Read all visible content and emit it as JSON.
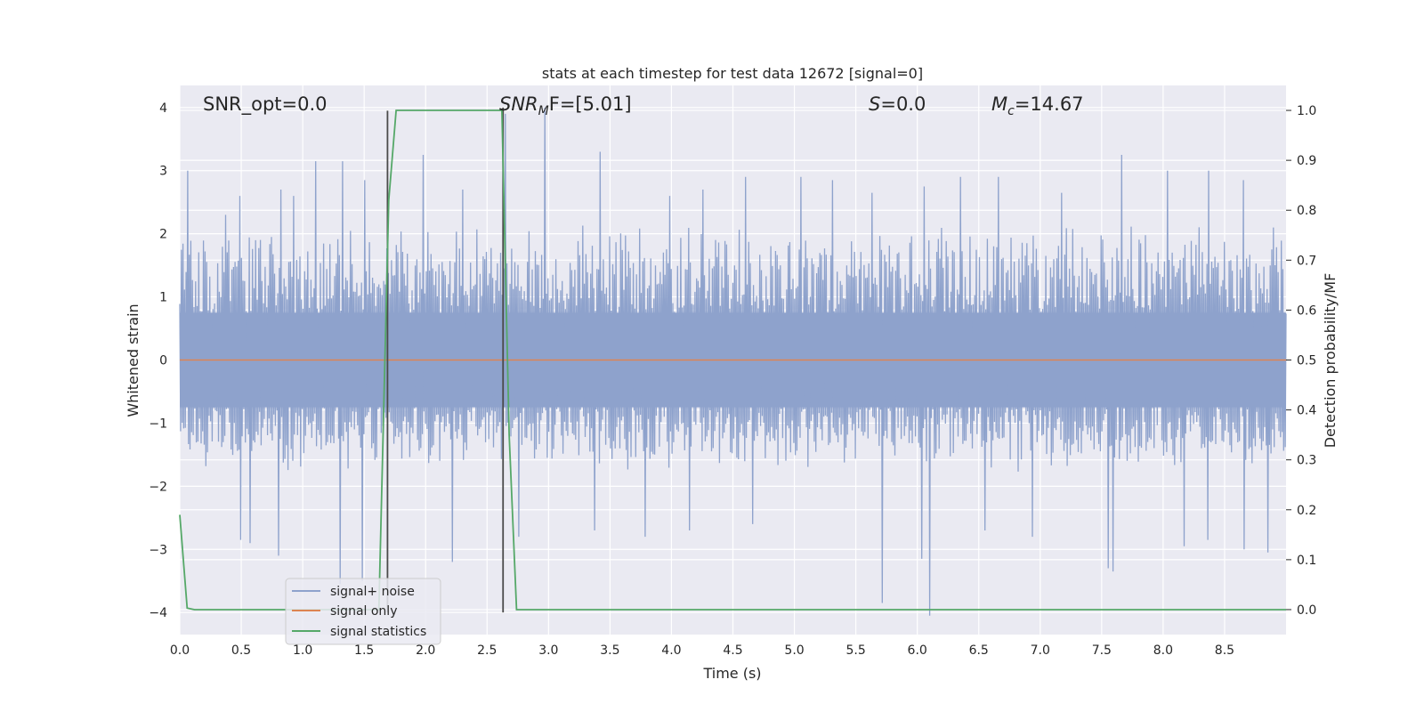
{
  "chart_data": {
    "type": "line",
    "title": "stats at each timestep for test data 12672 [signal=0]",
    "xlabel": "Time (s)",
    "ylabel": "Whitened strain",
    "y2label": "Detection probability/MF",
    "xlim": [
      0.0,
      9.0
    ],
    "ylim": [
      -4.35,
      4.35
    ],
    "y2lim": [
      -0.05,
      1.05
    ],
    "xticks": [
      "0.0",
      "0.5",
      "1.0",
      "1.5",
      "2.0",
      "2.5",
      "3.0",
      "3.5",
      "4.0",
      "4.5",
      "5.0",
      "5.5",
      "6.0",
      "6.5",
      "7.0",
      "7.5",
      "8.0",
      "8.5"
    ],
    "yticks": [
      "4",
      "3",
      "2",
      "1",
      "0",
      "−1",
      "−2",
      "−3",
      "−4"
    ],
    "y2ticks": [
      "1.0",
      "0.9",
      "0.8",
      "0.7",
      "0.6",
      "0.5",
      "0.4",
      "0.3",
      "0.2",
      "0.1",
      "0.0"
    ],
    "grid": true,
    "legend_placement": "lower-left",
    "annotations": {
      "snr_opt": "SNR_opt=0.0",
      "snr_mf": {
        "main": "SNR",
        "sub": "M",
        "rest": "F=[5.01]"
      },
      "s": {
        "main": "S",
        "rest": "=0.0"
      },
      "mc": {
        "main": "M",
        "sub": "c",
        "rest": "=14.67"
      }
    },
    "series": [
      {
        "name": "signal+ noise",
        "color": "#8ea2cc",
        "axis": "left",
        "kind": "noise",
        "envelope_typical_max": 2.2,
        "envelope_typical_min": -1.8,
        "peaks": [
          [
            0.07,
            3.0
          ],
          [
            0.37,
            2.3
          ],
          [
            0.49,
            2.6
          ],
          [
            0.82,
            2.7
          ],
          [
            0.92,
            2.6
          ],
          [
            1.1,
            3.15
          ],
          [
            1.32,
            3.15
          ],
          [
            1.5,
            2.85
          ],
          [
            1.98,
            3.25
          ],
          [
            2.3,
            2.7
          ],
          [
            2.65,
            3.9
          ],
          [
            2.97,
            4.0
          ],
          [
            3.42,
            3.3
          ],
          [
            3.98,
            2.6
          ],
          [
            4.25,
            2.7
          ],
          [
            4.6,
            2.9
          ],
          [
            5.05,
            2.9
          ],
          [
            5.31,
            2.85
          ],
          [
            5.63,
            2.65
          ],
          [
            6.06,
            2.75
          ],
          [
            6.35,
            2.9
          ],
          [
            6.66,
            2.9
          ],
          [
            7.18,
            2.65
          ],
          [
            7.66,
            3.25
          ],
          [
            8.03,
            3.0
          ],
          [
            8.37,
            3.0
          ],
          [
            8.65,
            2.85
          ],
          [
            8.9,
            2.1
          ]
        ],
        "troughs": [
          [
            0.5,
            -2.85
          ],
          [
            0.57,
            -2.9
          ],
          [
            0.8,
            -3.1
          ],
          [
            1.3,
            -3.55
          ],
          [
            1.48,
            -3.5
          ],
          [
            2.22,
            -3.2
          ],
          [
            2.76,
            -2.8
          ],
          [
            3.37,
            -2.7
          ],
          [
            3.79,
            -2.8
          ],
          [
            4.15,
            -2.7
          ],
          [
            4.66,
            -2.6
          ],
          [
            5.72,
            -3.85
          ],
          [
            6.04,
            -3.15
          ],
          [
            6.1,
            -4.05
          ],
          [
            6.55,
            -2.7
          ],
          [
            6.94,
            -2.8
          ],
          [
            7.55,
            -3.3
          ],
          [
            7.59,
            -3.35
          ],
          [
            8.17,
            -2.95
          ],
          [
            8.36,
            -2.85
          ],
          [
            8.66,
            -3.0
          ],
          [
            8.85,
            -3.05
          ]
        ]
      },
      {
        "name": "signal only",
        "color": "#dd8452",
        "axis": "left",
        "kind": "flat",
        "value": 0.0
      },
      {
        "name": "signal statistics",
        "color": "#55a868",
        "axis": "right",
        "kind": "line",
        "x": [
          0.0,
          0.06,
          0.12,
          1.62,
          1.7,
          1.76,
          2.62,
          2.68,
          2.74,
          9.0
        ],
        "y": [
          0.19,
          0.003,
          0.0,
          0.0,
          0.82,
          1.0,
          1.0,
          0.35,
          0.0,
          0.0
        ]
      }
    ],
    "vertical_lines": [
      {
        "x": 1.69,
        "ymin": -4.0,
        "ymax": 3.95,
        "color": "#4a4a4a"
      },
      {
        "x": 2.63,
        "ymin": -4.0,
        "ymax": 4.0,
        "color": "#4a4a4a"
      }
    ]
  }
}
